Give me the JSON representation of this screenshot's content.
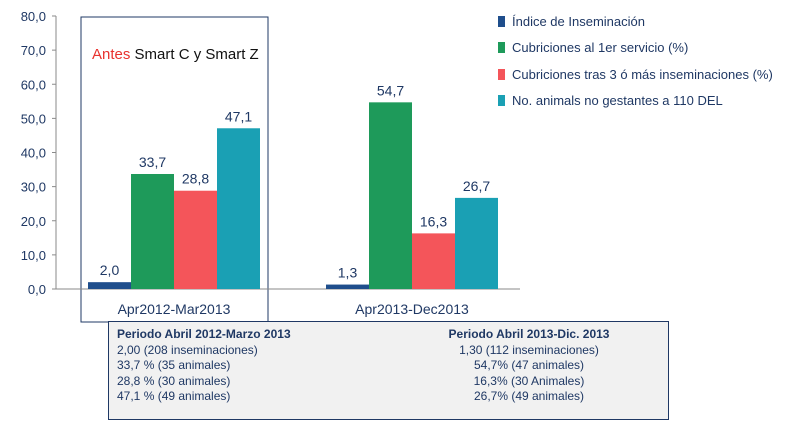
{
  "chart_data": {
    "type": "bar",
    "categories": [
      "Apr2012-Mar2013",
      "Apr2013-Dec2013"
    ],
    "series": [
      {
        "name": "Índice de Inseminación",
        "color": "#1f4e8c",
        "values": [
          2.0,
          1.3
        ],
        "labels": [
          "2,0",
          "1,3"
        ]
      },
      {
        "name": "Cubriciones al 1er servicio (%)",
        "color": "#1e9a5a",
        "values": [
          33.7,
          54.7
        ],
        "labels": [
          "33,7",
          "54,7"
        ]
      },
      {
        "name": "Cubriciones tras 3 ó más inseminaciones (%)",
        "color": "#f4555a",
        "values": [
          28.8,
          16.3
        ],
        "labels": [
          "28,8",
          "16,3"
        ]
      },
      {
        "name": "No. animals no gestantes a 110 DEL",
        "color": "#1aa0b4",
        "values": [
          47.1,
          26.7
        ],
        "labels": [
          "47,1",
          "26,7"
        ]
      }
    ],
    "ylim": [
      0,
      80
    ],
    "yticks": [
      "0,0",
      "10,0",
      "20,0",
      "30,0",
      "40,0",
      "50,0",
      "60,0",
      "70,0",
      "80,0"
    ],
    "legend_position": "right",
    "grid": false
  },
  "panel": {
    "highlight": "Antes",
    "rest": " Smart C y Smart Z"
  },
  "table": {
    "left_header": "Periodo Abril 2012-Marzo 2013",
    "right_header": "Periodo Abril 2013-Dic. 2013",
    "left_rows": [
      "2,00 (208 inseminaciones)",
      "33,7 % (35 animales)",
      "28,8 % (30 animales)",
      "47,1 % (49 animales)"
    ],
    "right_rows": [
      "1,30 (112 inseminaciones)",
      "54,7% (47 animales)",
      "16,3% (30 Animales)",
      "26,7% (49 animales)"
    ]
  }
}
